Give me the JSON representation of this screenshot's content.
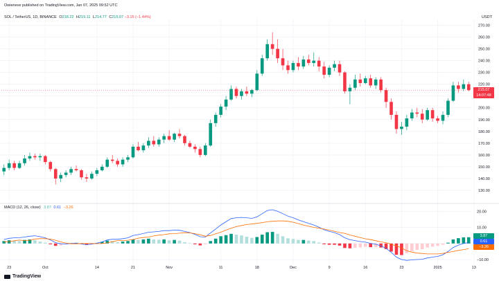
{
  "header": {
    "published": "Owieneve published on TradingView.com, Jan 07, 2025 09:52 UTC"
  },
  "symbol": {
    "name": "SOL / TetherUS, 1D, BINANCE",
    "o_label": "O",
    "o": "218.22",
    "h_label": "H",
    "h": "219.11",
    "l_label": "L",
    "l": "214.77",
    "c_label": "C",
    "c": "215.07",
    "chg": "−3.15 (−1.44%)"
  },
  "currency": "USDT",
  "price_tag": {
    "price": "215.07",
    "countdown": "14:07:48"
  },
  "macd_label": {
    "name": "MACD (12, 26, close)",
    "hist": "3.87",
    "macd": "0.61",
    "signal": "−3.26"
  },
  "macd_tags": {
    "hist": "3.87",
    "macd": "0.61",
    "signal": "−3.26"
  },
  "footer": {
    "brand": "TradingView"
  },
  "colors": {
    "up": "#089981",
    "down": "#f23645",
    "macd": "#2962ff",
    "signal": "#ff6d00",
    "hist_up_light": "#b2dfdb",
    "hist_down_light": "#ffcdd2"
  },
  "chart_data": [
    {
      "type": "candlestick",
      "title": "SOL / TetherUS, 1D, BINANCE",
      "ylabel": "USDT",
      "ylim": [
        120,
        275
      ],
      "y_ticks": [
        "270.00",
        "260.00",
        "250.00",
        "240.00",
        "230.00",
        "220.00",
        "210.00",
        "200.00",
        "190.00",
        "180.00",
        "170.00",
        "160.00",
        "150.00",
        "140.00",
        "130.00"
      ],
      "x_ticks": [
        "23",
        "Oct",
        "14",
        "21",
        "Nov",
        "11",
        "18",
        "Dec",
        "9",
        "16",
        "23",
        "2025",
        "13"
      ],
      "grid": true,
      "candles": [
        [
          146,
          152,
          143,
          149
        ],
        [
          149,
          156,
          147,
          153
        ],
        [
          153,
          155,
          147,
          149
        ],
        [
          149,
          155,
          148,
          153
        ],
        [
          153,
          160,
          151,
          157
        ],
        [
          157,
          162,
          155,
          159
        ],
        [
          159,
          161,
          156,
          158
        ],
        [
          158,
          161,
          155,
          159
        ],
        [
          159,
          160,
          152,
          154
        ],
        [
          154,
          155,
          146,
          148
        ],
        [
          148,
          149,
          135,
          140
        ],
        [
          140,
          145,
          137,
          143
        ],
        [
          143,
          147,
          141,
          145
        ],
        [
          145,
          150,
          143,
          148
        ],
        [
          148,
          151,
          146,
          147
        ],
        [
          147,
          148,
          139,
          141
        ],
        [
          141,
          144,
          137,
          140
        ],
        [
          140,
          146,
          139,
          144
        ],
        [
          144,
          149,
          142,
          147
        ],
        [
          147,
          152,
          146,
          150
        ],
        [
          150,
          158,
          149,
          156
        ],
        [
          156,
          160,
          153,
          155
        ],
        [
          155,
          157,
          150,
          152
        ],
        [
          152,
          158,
          150,
          156
        ],
        [
          156,
          160,
          154,
          158
        ],
        [
          158,
          169,
          157,
          167
        ],
        [
          167,
          171,
          163,
          164
        ],
        [
          164,
          170,
          162,
          168
        ],
        [
          168,
          175,
          166,
          172
        ],
        [
          172,
          176,
          167,
          169
        ],
        [
          169,
          175,
          167,
          173
        ],
        [
          173,
          178,
          170,
          176
        ],
        [
          176,
          181,
          172,
          173
        ],
        [
          173,
          179,
          171,
          178
        ],
        [
          178,
          182,
          174,
          176
        ],
        [
          176,
          177,
          168,
          170
        ],
        [
          170,
          172,
          166,
          167
        ],
        [
          167,
          169,
          162,
          165
        ],
        [
          165,
          167,
          158,
          160
        ],
        [
          160,
          170,
          159,
          168
        ],
        [
          168,
          190,
          167,
          187
        ],
        [
          187,
          196,
          184,
          194
        ],
        [
          194,
          203,
          192,
          201
        ],
        [
          201,
          210,
          198,
          207
        ],
        [
          207,
          219,
          206,
          216
        ],
        [
          216,
          218,
          208,
          210
        ],
        [
          210,
          216,
          207,
          214
        ],
        [
          214,
          218,
          210,
          212
        ],
        [
          212,
          216,
          209,
          215
        ],
        [
          215,
          232,
          214,
          229
        ],
        [
          229,
          245,
          227,
          242
        ],
        [
          242,
          258,
          240,
          254
        ],
        [
          254,
          264,
          245,
          250
        ],
        [
          250,
          258,
          238,
          242
        ],
        [
          242,
          250,
          232,
          236
        ],
        [
          236,
          240,
          229,
          232
        ],
        [
          232,
          240,
          230,
          238
        ],
        [
          238,
          243,
          232,
          235
        ],
        [
          235,
          244,
          233,
          241
        ],
        [
          241,
          245,
          236,
          238
        ],
        [
          238,
          247,
          235,
          240
        ],
        [
          240,
          243,
          231,
          235
        ],
        [
          235,
          239,
          225,
          228
        ],
        [
          228,
          236,
          226,
          234
        ],
        [
          234,
          240,
          231,
          237
        ],
        [
          237,
          240,
          227,
          230
        ],
        [
          230,
          231,
          212,
          214
        ],
        [
          214,
          220,
          203,
          217
        ],
        [
          217,
          228,
          215,
          224
        ],
        [
          224,
          229,
          218,
          221
        ],
        [
          221,
          227,
          220,
          225
        ],
        [
          225,
          228,
          217,
          219
        ],
        [
          219,
          226,
          216,
          224
        ],
        [
          224,
          226,
          213,
          215
        ],
        [
          215,
          217,
          200,
          205
        ],
        [
          205,
          208,
          190,
          194
        ],
        [
          194,
          197,
          178,
          182
        ],
        [
          182,
          188,
          177,
          184
        ],
        [
          184,
          194,
          181,
          191
        ],
        [
          191,
          199,
          189,
          196
        ],
        [
          196,
          200,
          192,
          195
        ],
        [
          195,
          199,
          187,
          190
        ],
        [
          190,
          200,
          189,
          198
        ],
        [
          198,
          200,
          188,
          191
        ],
        [
          191,
          193,
          187,
          189
        ],
        [
          189,
          197,
          186,
          194
        ],
        [
          194,
          208,
          192,
          206
        ],
        [
          206,
          222,
          205,
          219
        ],
        [
          219,
          222,
          213,
          216
        ],
        [
          216,
          224,
          214,
          220
        ],
        [
          220,
          222,
          214,
          215
        ]
      ]
    },
    {
      "type": "macd",
      "title": "MACD (12, 26, close)",
      "ylim": [
        -13,
        24
      ],
      "y_ticks": [
        "20.00",
        "10.00",
        "0.00",
        "−10.00"
      ],
      "histogram": [
        1.5,
        2,
        1.8,
        1.5,
        2.2,
        2.5,
        2,
        1.2,
        0.5,
        -0.5,
        -1.5,
        -1.2,
        -0.6,
        0.2,
        0.4,
        -0.3,
        -0.8,
        -0.4,
        0.3,
        1,
        1.8,
        1.5,
        0.8,
        1.2,
        1.5,
        2.5,
        2.2,
        2.5,
        3,
        2.5,
        2.3,
        2.5,
        2,
        2.2,
        1.8,
        0.8,
        0.2,
        -0.5,
        -1.2,
        -0.5,
        1.5,
        3,
        4.5,
        5.2,
        6,
        5.5,
        5,
        4.2,
        3.5,
        4,
        5.5,
        7,
        7.2,
        6,
        4.5,
        3.2,
        2.8,
        2.2,
        2.2,
        1.8,
        1.5,
        0.6,
        -0.5,
        -0.8,
        -0.8,
        -1.3,
        -2.8,
        -3,
        -2.7,
        -2.5,
        -2.1,
        -2.3,
        -2.2,
        -2.5,
        -3.5,
        -5,
        -7,
        -7.2,
        -6,
        -4.8,
        -4,
        -3.6,
        -2.5,
        -2,
        -1.5,
        -0.8,
        0.5,
        2.5,
        3.3,
        3.8,
        3.87
      ],
      "macd": [
        2.5,
        3.2,
        3.5,
        3.6,
        4,
        4.5,
        4.8,
        4.2,
        3.5,
        2.2,
        0.5,
        -0.2,
        -0.3,
        0,
        0.2,
        -0.3,
        -0.8,
        -0.4,
        0.2,
        1,
        2.2,
        2.6,
        2.6,
        3,
        3.5,
        5,
        5.5,
        6.2,
        7,
        7.2,
        7.5,
        8,
        8,
        8.3,
        8.2,
        7.5,
        6.8,
        5.6,
        4.2,
        4,
        6.5,
        9,
        11.5,
        13.5,
        15.5,
        16,
        16.2,
        16,
        15.6,
        16.5,
        18.5,
        20.5,
        21,
        20,
        18.5,
        17,
        16,
        14.6,
        13.6,
        12.5,
        11.5,
        10.1,
        8.5,
        7.5,
        6.8,
        5.5,
        3.5,
        2.3,
        1.8,
        1.2,
        0.8,
        0.1,
        -0.5,
        -1.5,
        -3,
        -5.5,
        -8.5,
        -10,
        -10.5,
        -10.2,
        -10,
        -9.8,
        -9,
        -8.5,
        -8,
        -7,
        -5,
        -2.5,
        -1,
        0,
        0.61
      ],
      "signal": [
        1,
        1.2,
        1.7,
        2.1,
        1.8,
        2,
        2.8,
        3,
        3,
        2.7,
        2,
        1,
        0.3,
        -0.2,
        -0.2,
        0,
        0,
        0,
        -0.1,
        0,
        0.4,
        1.1,
        1.8,
        1.8,
        2,
        2.5,
        3.3,
        3.7,
        4,
        4.7,
        5.2,
        5.5,
        6,
        6.1,
        6.4,
        6.7,
        6.6,
        6.1,
        5.4,
        4.5,
        5,
        6,
        7,
        8.3,
        9.5,
        10.5,
        11.2,
        11.8,
        12.1,
        12.5,
        13,
        13.5,
        13.8,
        14,
        14,
        13.8,
        13.2,
        12.4,
        11.4,
        10.7,
        10,
        9.5,
        9,
        8.3,
        7.6,
        6.8,
        6.3,
        5.3,
        4.5,
        3.7,
        2.9,
        2.4,
        1.7,
        1,
        0.5,
        -0.5,
        -1.5,
        -2.8,
        -4.5,
        -5.4,
        -6,
        -6.2,
        -6.5,
        -6.5,
        -6.5,
        -6.2,
        -5.5,
        -5,
        -4.3,
        -3.8,
        -3.26
      ]
    }
  ]
}
